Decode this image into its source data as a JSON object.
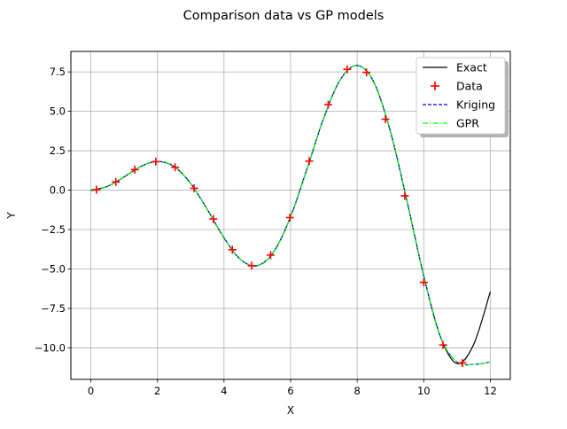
{
  "chart_data": {
    "type": "line",
    "title": "Comparison data vs GP models",
    "xlabel": "X",
    "ylabel": "Y",
    "xlim": [
      -0.6,
      12.6
    ],
    "ylim": [
      -12.0,
      8.8
    ],
    "xticks": [
      0,
      2,
      4,
      6,
      8,
      10,
      12
    ],
    "yticks": [
      -10.0,
      -7.5,
      -5.0,
      -2.5,
      0.0,
      2.5,
      5.0,
      7.5
    ],
    "xtick_labels": [
      "0",
      "2",
      "4",
      "6",
      "8",
      "10",
      "12"
    ],
    "ytick_labels": [
      "−10.0",
      "−7.5",
      "−5.0",
      "−2.5",
      "0.0",
      "2.5",
      "5.0",
      "7.5"
    ],
    "grid": true,
    "legend_position": "top-right",
    "series": [
      {
        "name": "Exact",
        "kind": "line",
        "color": "#000000",
        "style": "solid",
        "x": [
          0,
          0.5,
          1,
          1.5,
          2,
          2.5,
          3,
          3.5,
          4,
          4.5,
          5,
          5.5,
          6,
          6.5,
          7,
          7.5,
          8,
          8.5,
          9,
          9.5,
          10,
          10.5,
          11,
          11.5,
          12
        ],
        "y": [
          0.0,
          0.24,
          0.84,
          1.5,
          1.82,
          1.5,
          0.42,
          -1.23,
          -3.03,
          -4.4,
          -4.79,
          -3.89,
          -1.68,
          1.4,
          4.6,
          7.03,
          7.91,
          6.86,
          3.71,
          -0.72,
          -5.44,
          -9.29,
          -11.0,
          -9.78,
          -6.44
        ]
      },
      {
        "name": "Data",
        "kind": "scatter",
        "color": "#ff0000",
        "marker": "+",
        "x": [
          0.17,
          0.75,
          1.32,
          1.95,
          2.53,
          3.1,
          3.68,
          4.25,
          4.83,
          5.4,
          5.98,
          6.56,
          7.13,
          7.7,
          8.28,
          8.85,
          9.43,
          10.0,
          10.58,
          11.16
        ],
        "y": [
          0.03,
          0.52,
          1.3,
          1.81,
          1.45,
          0.12,
          -1.83,
          -3.78,
          -4.79,
          -4.12,
          -1.74,
          1.84,
          5.42,
          7.66,
          7.47,
          4.5,
          -0.36,
          -5.85,
          -9.82,
          -10.96
        ]
      },
      {
        "name": "Kriging",
        "kind": "line",
        "color": "#0000ff",
        "style": "dashed",
        "x": [
          0,
          0.5,
          1,
          1.5,
          2,
          2.5,
          3,
          3.5,
          4,
          4.5,
          5,
          5.5,
          6,
          6.5,
          7,
          7.5,
          8,
          8.5,
          9,
          9.5,
          10,
          10.5,
          11,
          11.5,
          12
        ],
        "y": [
          -0.05,
          0.24,
          0.84,
          1.5,
          1.82,
          1.5,
          0.42,
          -1.23,
          -3.03,
          -4.4,
          -4.79,
          -3.89,
          -1.68,
          1.4,
          4.6,
          7.03,
          7.91,
          6.86,
          3.71,
          -0.72,
          -5.44,
          -9.29,
          -10.9,
          -11.05,
          -10.9
        ]
      },
      {
        "name": "GPR",
        "kind": "line",
        "color": "#00ff00",
        "style": "dashdot",
        "x": [
          0,
          0.5,
          1,
          1.5,
          2,
          2.5,
          3,
          3.5,
          4,
          4.5,
          5,
          5.5,
          6,
          6.5,
          7,
          7.5,
          8,
          8.5,
          9,
          9.5,
          10,
          10.5,
          11,
          11.5,
          12
        ],
        "y": [
          -0.05,
          0.24,
          0.84,
          1.5,
          1.82,
          1.5,
          0.42,
          -1.23,
          -3.03,
          -4.4,
          -4.79,
          -3.89,
          -1.68,
          1.4,
          4.6,
          7.03,
          7.91,
          6.86,
          3.71,
          -0.72,
          -5.44,
          -9.29,
          -10.9,
          -11.05,
          -10.9
        ]
      }
    ]
  }
}
